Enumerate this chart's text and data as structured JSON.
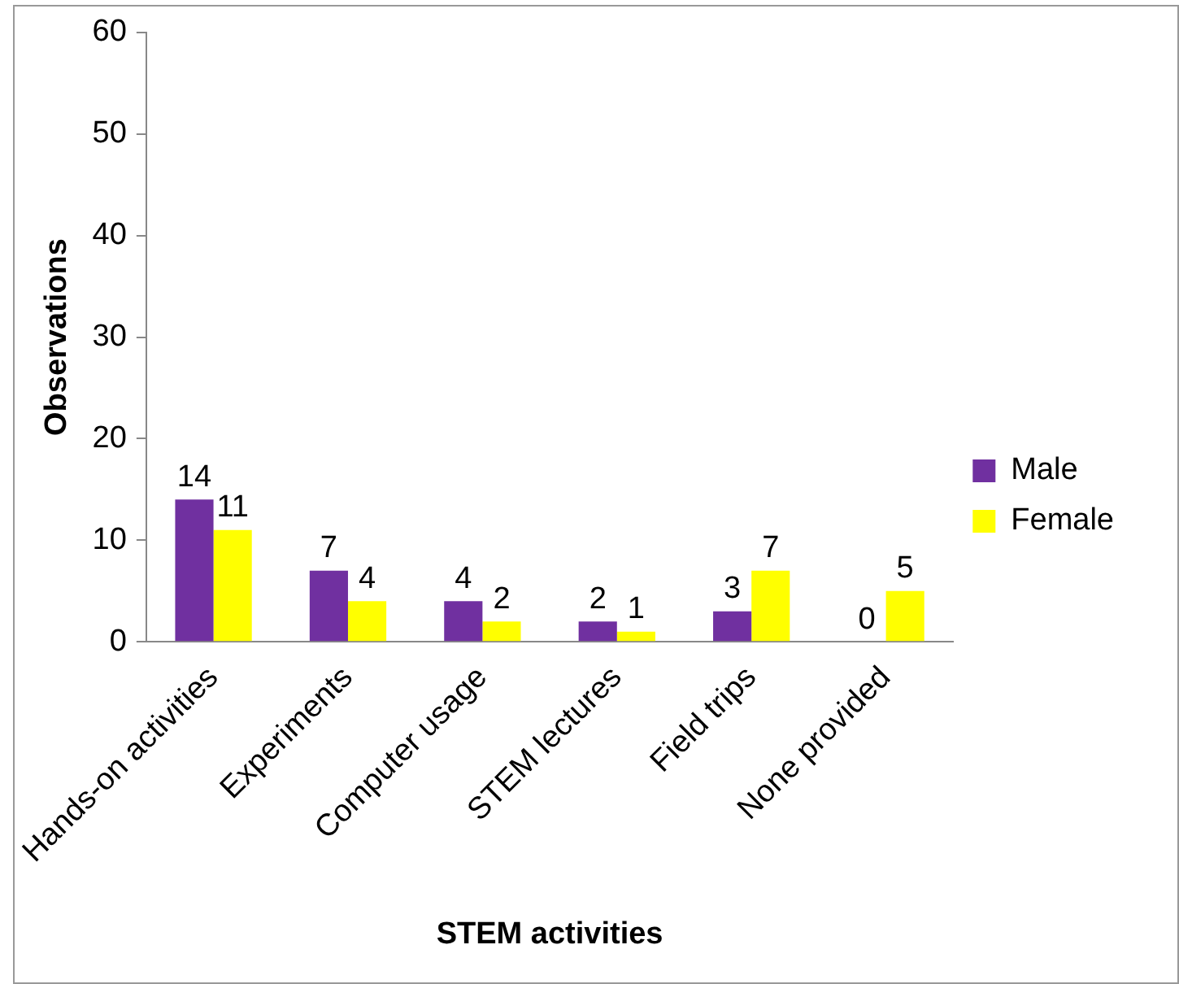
{
  "chart_data": {
    "type": "bar",
    "xlabel": "STEM activities",
    "ylabel": "Observations",
    "categories": [
      "Hands-on activities",
      "Experiments",
      "Computer usage",
      "STEM lectures",
      "Field trips",
      "None provided"
    ],
    "series": [
      {
        "name": "Male",
        "color": "#7030a0",
        "values": [
          14,
          7,
          4,
          2,
          3,
          0
        ]
      },
      {
        "name": "Female",
        "color": "#ffff00",
        "values": [
          11,
          4,
          2,
          1,
          7,
          5
        ]
      }
    ],
    "ylim": [
      0,
      60
    ],
    "yticks": [
      0,
      10,
      20,
      30,
      40,
      50,
      60
    ],
    "grid": false,
    "legend": "right",
    "data_labels": true
  }
}
